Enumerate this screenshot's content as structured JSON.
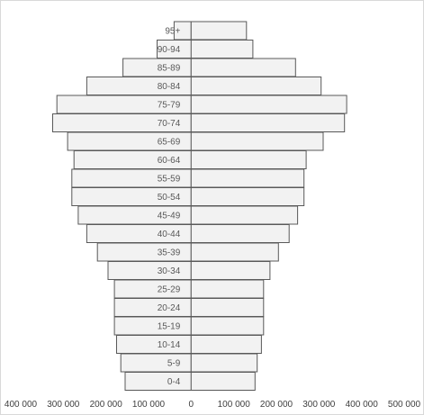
{
  "chart_data": {
    "type": "bar",
    "orientation": "horizontal",
    "stacked": true,
    "title": "",
    "xlabel": "",
    "ylabel": "",
    "categories": [
      "0-4",
      "5-9",
      "10-14",
      "15-19",
      "20-24",
      "25-29",
      "30-34",
      "35-39",
      "40-44",
      "45-49",
      "50-54",
      "55-59",
      "60-64",
      "65-69",
      "70-74",
      "75-79",
      "80-84",
      "85-89",
      "90-94",
      "95+"
    ],
    "series": [
      {
        "values": [
          -155000,
          -165000,
          -175000,
          -180000,
          -180000,
          -180000,
          -195000,
          -220000,
          -245000,
          -265000,
          -280000,
          -280000,
          -275000,
          -290000,
          -325000,
          -315000,
          -245000,
          -160000,
          -80000,
          -40000
        ]
      },
      {
        "values": [
          150000,
          155000,
          165000,
          170000,
          170000,
          170000,
          185000,
          205000,
          230000,
          250000,
          265000,
          265000,
          270000,
          310000,
          360000,
          365000,
          305000,
          245000,
          145000,
          130000
        ]
      }
    ],
    "xlim": [
      -400000,
      500000
    ],
    "x_ticks": [
      "400 000",
      "300 000",
      "200 000",
      "100 000",
      "0",
      "100 000",
      "200 000",
      "300 000",
      "400 000",
      "500 000"
    ],
    "grid": false,
    "legend": "none",
    "colors": {
      "bar_fill": "#f2f2f2",
      "bar_stroke": "#595959"
    }
  }
}
